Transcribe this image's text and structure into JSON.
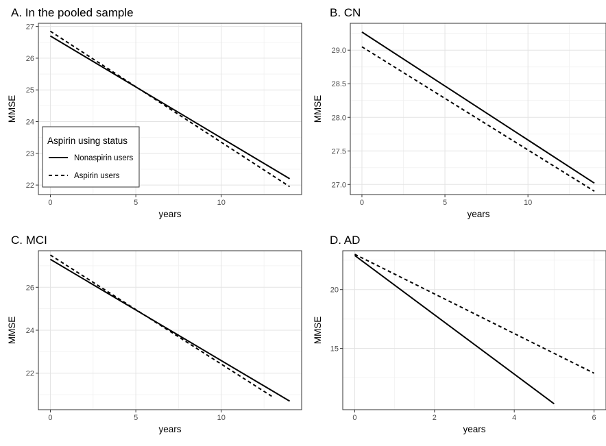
{
  "chart_data": [
    {
      "type": "line",
      "title": "A. In the pooled sample",
      "xlabel": "years",
      "ylabel": "MMSE",
      "xlim": [
        -0.7,
        14.7
      ],
      "ylim": [
        21.7,
        27.1
      ],
      "xticks": [
        0,
        5,
        10
      ],
      "yticks": [
        22,
        23,
        24,
        25,
        26,
        27
      ],
      "tick_labels_x": [
        "0",
        "5",
        "10"
      ],
      "tick_labels_y": [
        "22",
        "23",
        "24",
        "25",
        "26",
        "27"
      ],
      "grid": true,
      "legend": "bottom-left",
      "series": [
        {
          "name": "Nonaspirin users",
          "style": "solid",
          "x": [
            0,
            14
          ],
          "y": [
            26.7,
            22.2
          ]
        },
        {
          "name": "Aspirin users",
          "style": "dashed",
          "x": [
            0,
            14
          ],
          "y": [
            26.85,
            21.95
          ]
        }
      ]
    },
    {
      "type": "line",
      "title": "B. CN",
      "xlabel": "years",
      "ylabel": "MMSE",
      "xlim": [
        -0.7,
        14.7
      ],
      "ylim": [
        26.85,
        29.4
      ],
      "xticks": [
        0,
        5,
        10
      ],
      "yticks": [
        27.0,
        27.5,
        28.0,
        28.5,
        29.0
      ],
      "tick_labels_x": [
        "0",
        "5",
        "10"
      ],
      "tick_labels_y": [
        "27.0",
        "27.5",
        "28.0",
        "28.5",
        "29.0"
      ],
      "grid": true,
      "series": [
        {
          "name": "Nonaspirin users",
          "style": "solid",
          "x": [
            0,
            14
          ],
          "y": [
            29.27,
            27.02
          ]
        },
        {
          "name": "Aspirin users",
          "style": "dashed",
          "x": [
            0,
            14
          ],
          "y": [
            29.05,
            26.9
          ]
        }
      ]
    },
    {
      "type": "line",
      "title": "C. MCI",
      "xlabel": "years",
      "ylabel": "MMSE",
      "xlim": [
        -0.7,
        14.7
      ],
      "ylim": [
        20.3,
        27.7
      ],
      "xticks": [
        0,
        5,
        10
      ],
      "yticks": [
        22,
        24,
        26
      ],
      "tick_labels_x": [
        "0",
        "5",
        "10"
      ],
      "tick_labels_y": [
        "22",
        "24",
        "26"
      ],
      "grid": true,
      "series": [
        {
          "name": "Nonaspirin users",
          "style": "solid",
          "x": [
            0,
            14
          ],
          "y": [
            27.3,
            20.7
          ]
        },
        {
          "name": "Aspirin users",
          "style": "dashed",
          "x": [
            0,
            13
          ],
          "y": [
            27.5,
            20.9
          ]
        }
      ]
    },
    {
      "type": "line",
      "title": "D. AD",
      "xlabel": "years",
      "ylabel": "MMSE",
      "xlim": [
        -0.3,
        6.3
      ],
      "ylim": [
        9.8,
        23.3
      ],
      "xticks": [
        0,
        2,
        4,
        6
      ],
      "yticks": [
        15,
        20
      ],
      "tick_labels_x": [
        "0",
        "2",
        "4",
        "6"
      ],
      "tick_labels_y": [
        "15",
        "20"
      ],
      "grid": true,
      "series": [
        {
          "name": "Nonaspirin users",
          "style": "solid",
          "x": [
            0,
            5
          ],
          "y": [
            22.9,
            10.3
          ]
        },
        {
          "name": "Aspirin users",
          "style": "dashed",
          "x": [
            0,
            6
          ],
          "y": [
            23.0,
            12.9
          ]
        }
      ]
    }
  ],
  "legend": {
    "title": "Aspirin using status",
    "items": [
      "Nonaspirin users",
      "Aspirin users"
    ]
  }
}
